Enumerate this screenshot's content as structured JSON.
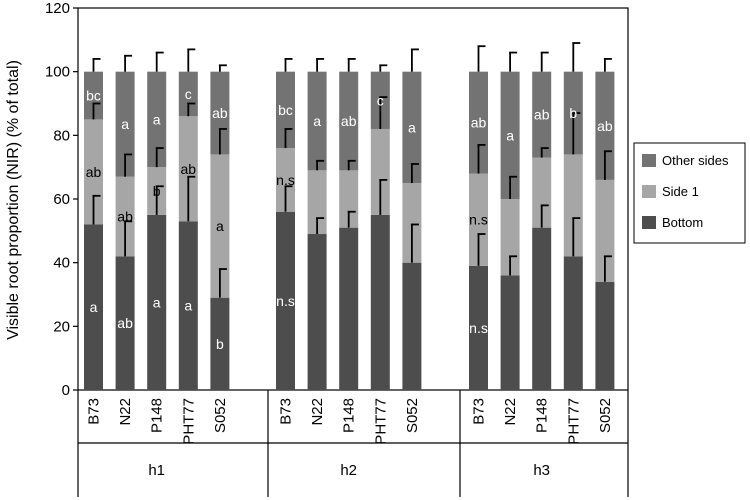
{
  "chart_data": {
    "type": "bar",
    "stacked": true,
    "ylabel": "Visible root proportion (NIR) (% of total)",
    "ylim": [
      0,
      120
    ],
    "yticks": [
      0,
      20,
      40,
      60,
      80,
      100,
      120
    ],
    "grid": false,
    "legend_position": "right",
    "groups": [
      {
        "label": "h1",
        "categories": [
          "B73",
          "N22",
          "P148",
          "PHT77",
          "S052"
        ],
        "bottom": [
          52,
          42,
          55,
          53,
          29
        ],
        "side1": [
          33,
          25,
          15,
          33,
          45
        ],
        "other": [
          15,
          33,
          30,
          14,
          26
        ],
        "err_bottom": [
          9,
          11,
          9,
          14,
          9
        ],
        "err_side1": [
          5,
          7,
          6,
          4,
          8
        ],
        "err_other": [
          4,
          5,
          6,
          7,
          2
        ],
        "ann_bottom": [
          "a",
          "ab",
          "a",
          "a",
          "b"
        ],
        "ann_side1": [
          "ab",
          "ab",
          "b",
          "ab",
          "a"
        ],
        "ann_other": [
          "bc",
          "a",
          "a",
          "c",
          "ab"
        ]
      },
      {
        "label": "h2",
        "categories": [
          "B73",
          "N22",
          "P148",
          "PHT77",
          "S052"
        ],
        "bottom": [
          56,
          49,
          51,
          55,
          40
        ],
        "side1": [
          20,
          20,
          18,
          27,
          25
        ],
        "other": [
          24,
          31,
          31,
          18,
          35
        ],
        "err_bottom": [
          8,
          5,
          5,
          11,
          12
        ],
        "err_side1": [
          6,
          3,
          3,
          10,
          6
        ],
        "err_other": [
          4,
          4,
          4,
          2,
          7
        ],
        "ann_bottom": [
          "n.s",
          "",
          "",
          "",
          ""
        ],
        "ann_side1": [
          "n.s",
          "",
          "",
          "",
          ""
        ],
        "ann_other": [
          "bc",
          "a",
          "ab",
          "c",
          "a"
        ]
      },
      {
        "label": "h3",
        "categories": [
          "B73",
          "N22",
          "P148",
          "PHT77",
          "S052"
        ],
        "bottom": [
          39,
          36,
          51,
          42,
          34
        ],
        "side1": [
          29,
          24,
          22,
          32,
          32
        ],
        "other": [
          32,
          40,
          27,
          26,
          34
        ],
        "err_bottom": [
          10,
          6,
          7,
          12,
          8
        ],
        "err_side1": [
          9,
          7,
          3,
          13,
          9
        ],
        "err_other": [
          8,
          6,
          6,
          9,
          4
        ],
        "ann_bottom": [
          "n.s",
          "",
          "",
          "",
          ""
        ],
        "ann_side1": [
          "n.s",
          "",
          "",
          "",
          ""
        ],
        "ann_other": [
          "ab",
          "a",
          "ab",
          "b",
          "ab"
        ]
      }
    ],
    "series": [
      {
        "name": "Other sides",
        "key": "other",
        "color": "#737373"
      },
      {
        "name": "Side 1",
        "key": "side1",
        "color": "#a6a6a6"
      },
      {
        "name": "Bottom",
        "key": "bottom",
        "color": "#4d4d4d"
      }
    ]
  }
}
